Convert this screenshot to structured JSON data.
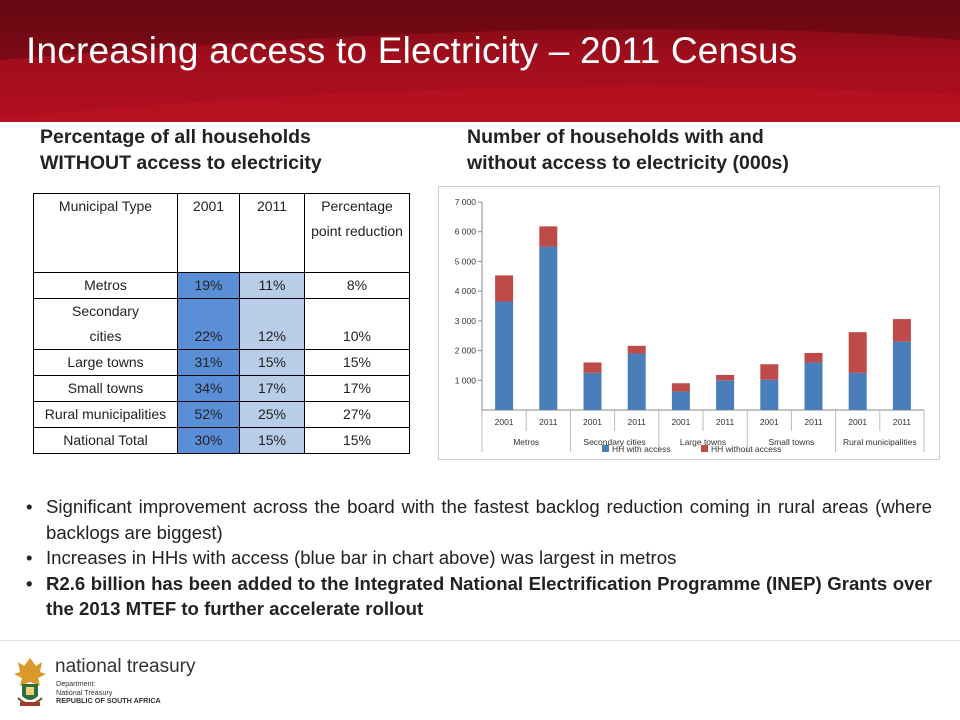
{
  "title": "Increasing access to Electricity – 2011 Census",
  "table_section": {
    "heading_line1": "Percentage of all households",
    "heading_line2": "WITHOUT access to electricity",
    "columns": [
      "Municipal Type",
      "2001",
      "2011",
      "Percentage point reduction"
    ],
    "rows": [
      {
        "type": "Metros",
        "v2001": "19%",
        "v2011": "11%",
        "reduction": "8%"
      },
      {
        "type": "Secondary cities",
        "v2001": "22%",
        "v2011": "12%",
        "reduction": "10%"
      },
      {
        "type": "Large towns",
        "v2001": "31%",
        "v2011": "15%",
        "reduction": "15%"
      },
      {
        "type": "Small towns",
        "v2001": "34%",
        "v2011": "17%",
        "reduction": "17%"
      },
      {
        "type": "Rural municipalities",
        "v2001": "52%",
        "v2011": "25%",
        "reduction": "27%"
      },
      {
        "type": "National Total",
        "v2001": "30%",
        "v2011": "15%",
        "reduction": "15%"
      }
    ]
  },
  "chart_section": {
    "heading_line1": "Number of households  with and",
    "heading_line2": "without access to electricity (000s)"
  },
  "chart_data": {
    "type": "bar",
    "stacked": true,
    "x": [
      "2001",
      "2011",
      "2001",
      "2011",
      "2001",
      "2011",
      "2001",
      "2011",
      "2001",
      "2011"
    ],
    "groups": [
      "Metros",
      "Secondary cities",
      "Large towns",
      "Small towns",
      "Rural municipalities"
    ],
    "series": [
      {
        "name": "HH with access",
        "color": "#4a7ebb",
        "values": [
          3650,
          5500,
          1250,
          1900,
          620,
          1000,
          1020,
          1600,
          1250,
          2300
        ]
      },
      {
        "name": "HH without access",
        "color": "#be4b48",
        "values": [
          880,
          680,
          350,
          260,
          280,
          180,
          520,
          320,
          1370,
          760
        ]
      }
    ],
    "ylim": [
      0,
      7000
    ],
    "yticks": [
      "1 000",
      "2 000",
      "3 000",
      "4 000",
      "5 000",
      "6 000",
      "7 000"
    ],
    "ytick_values": [
      1000,
      2000,
      3000,
      4000,
      5000,
      6000,
      7000
    ],
    "grid": false,
    "legend": "bottom"
  },
  "bullets": [
    "Significant improvement across the board with the fastest backlog reduction coming in rural areas (where backlogs are biggest)",
    "Increases in HHs with access (blue bar in chart above) was largest in metros",
    "R2.6 billion has been added to the Integrated National Electrification Programme (INEP) Grants over the 2013 MTEF to further accelerate rollout"
  ],
  "footer": {
    "brand": "national treasury",
    "sub_line1": "Department:",
    "sub_line2": "National Treasury",
    "sub_line3": "REPUBLIC OF SOUTH AFRICA"
  }
}
